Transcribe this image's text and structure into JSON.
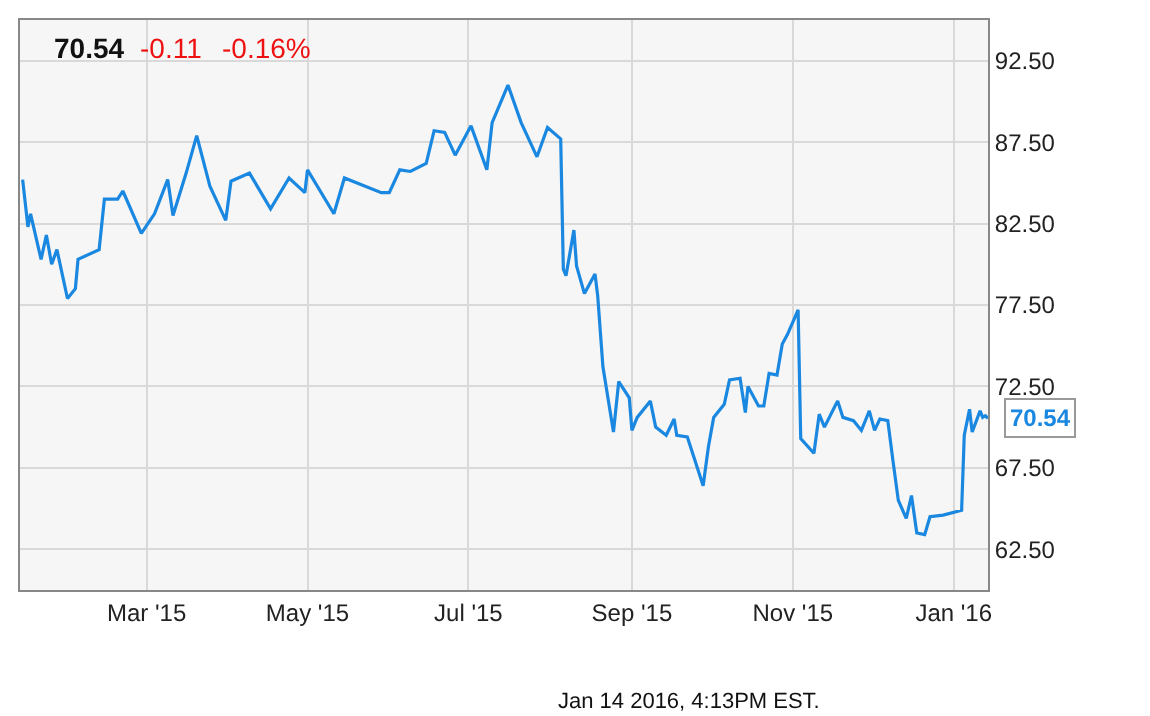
{
  "chart_data": {
    "type": "line",
    "x": [
      "2015-01-13",
      "2015-01-15",
      "2015-01-16",
      "2015-01-20",
      "2015-01-22",
      "2015-01-24",
      "2015-01-26",
      "2015-01-30",
      "2015-02-02",
      "2015-02-03",
      "2015-02-11",
      "2015-02-13",
      "2015-02-18",
      "2015-02-20",
      "2015-02-27",
      "2015-03-04",
      "2015-03-09",
      "2015-03-11",
      "2015-03-16",
      "2015-03-20",
      "2015-03-25",
      "2015-03-31",
      "2015-04-02",
      "2015-04-09",
      "2015-04-17",
      "2015-04-24",
      "2015-04-30",
      "2015-05-01",
      "2015-05-11",
      "2015-05-15",
      "2015-05-29",
      "2015-06-01",
      "2015-06-05",
      "2015-06-09",
      "2015-06-15",
      "2015-06-18",
      "2015-06-22",
      "2015-06-26",
      "2015-07-02",
      "2015-07-08",
      "2015-07-10",
      "2015-07-16",
      "2015-07-21",
      "2015-07-27",
      "2015-07-31",
      "2015-08-05",
      "2015-08-06",
      "2015-08-07",
      "2015-08-10",
      "2015-08-11",
      "2015-08-14",
      "2015-08-18",
      "2015-08-19",
      "2015-08-21",
      "2015-08-25",
      "2015-08-27",
      "2015-08-31",
      "2015-09-01",
      "2015-09-03",
      "2015-09-08",
      "2015-09-10",
      "2015-09-14",
      "2015-09-17",
      "2015-09-18",
      "2015-09-22",
      "2015-09-25",
      "2015-09-28",
      "2015-09-30",
      "2015-10-02",
      "2015-10-06",
      "2015-10-08",
      "2015-10-12",
      "2015-10-14",
      "2015-10-15",
      "2015-10-19",
      "2015-10-21",
      "2015-10-23",
      "2015-10-26",
      "2015-10-28",
      "2015-10-30",
      "2015-11-03",
      "2015-11-04",
      "2015-11-09",
      "2015-11-11",
      "2015-11-13",
      "2015-11-17",
      "2015-11-18",
      "2015-11-20",
      "2015-11-24",
      "2015-11-27",
      "2015-11-30",
      "2015-12-02",
      "2015-12-04",
      "2015-12-07",
      "2015-12-09",
      "2015-12-11",
      "2015-12-14",
      "2015-12-16",
      "2015-12-18",
      "2015-12-21",
      "2015-12-23",
      "2015-12-28",
      "2016-01-04",
      "2016-01-05",
      "2016-01-07",
      "2016-01-08",
      "2016-01-11",
      "2016-01-12",
      "2016-01-13",
      "2016-01-14"
    ],
    "series": [
      {
        "color": "#1a88e0",
        "values": [
          85.2,
          82.3,
          83.1,
          80.3,
          81.8,
          80.0,
          80.9,
          77.9,
          78.5,
          80.3,
          80.9,
          84.0,
          84.0,
          84.5,
          81.9,
          83.1,
          85.2,
          83.0,
          85.6,
          87.9,
          84.8,
          82.7,
          85.1,
          85.6,
          83.4,
          85.3,
          84.4,
          85.8,
          83.1,
          85.3,
          84.4,
          84.4,
          85.8,
          85.7,
          86.2,
          88.2,
          88.1,
          86.7,
          88.5,
          85.8,
          88.7,
          91.0,
          88.7,
          86.6,
          88.4,
          87.7,
          79.7,
          79.3,
          82.1,
          79.9,
          78.2,
          79.4,
          78.1,
          73.7,
          69.7,
          72.8,
          71.8,
          69.8,
          70.6,
          71.6,
          70.0,
          69.5,
          70.5,
          69.5,
          69.4,
          67.9,
          66.4,
          68.8,
          70.6,
          71.4,
          72.9,
          73.0,
          70.9,
          72.5,
          71.3,
          71.3,
          73.3,
          73.2,
          75.1,
          75.7,
          77.2,
          69.3,
          68.4,
          70.8,
          70.0,
          71.3,
          71.6,
          70.6,
          70.4,
          69.8,
          71.0,
          69.8,
          70.5,
          70.4,
          67.9,
          65.5,
          64.4,
          65.8,
          63.5,
          63.4,
          64.5,
          64.6,
          64.9,
          69.5,
          71.1,
          69.7,
          71.0,
          70.6,
          70.7,
          70.54
        ]
      }
    ],
    "xlim": [
      "2015-01-12",
      "2016-01-14"
    ],
    "xticks": [
      {
        "value": "2015-03-01",
        "label": "Mar '15"
      },
      {
        "value": "2015-05-01",
        "label": "May '15"
      },
      {
        "value": "2015-07-01",
        "label": "Jul '15"
      },
      {
        "value": "2015-09-01",
        "label": "Sep '15"
      },
      {
        "value": "2015-11-01",
        "label": "Nov '15"
      },
      {
        "value": "2016-01-01",
        "label": "Jan '16"
      }
    ],
    "ylim": [
      60,
      95
    ],
    "yticks": [
      {
        "value": 62.5,
        "label": "62.50"
      },
      {
        "value": 67.5,
        "label": "67.50"
      },
      {
        "value": 72.5,
        "label": "72.50"
      },
      {
        "value": 77.5,
        "label": "77.50"
      },
      {
        "value": 82.5,
        "label": "82.50"
      },
      {
        "value": 87.5,
        "label": "87.50"
      },
      {
        "value": 92.5,
        "label": "92.50"
      }
    ],
    "grid": true,
    "marker": "none",
    "line_style": "solid",
    "annotations": [
      "70.54",
      "-0.11",
      "-0.16%",
      "Jan 14 2016, 4:13PM EST.",
      {
        "text": "70.54",
        "x": "2016-01-14",
        "y": 70.54
      }
    ]
  }
}
